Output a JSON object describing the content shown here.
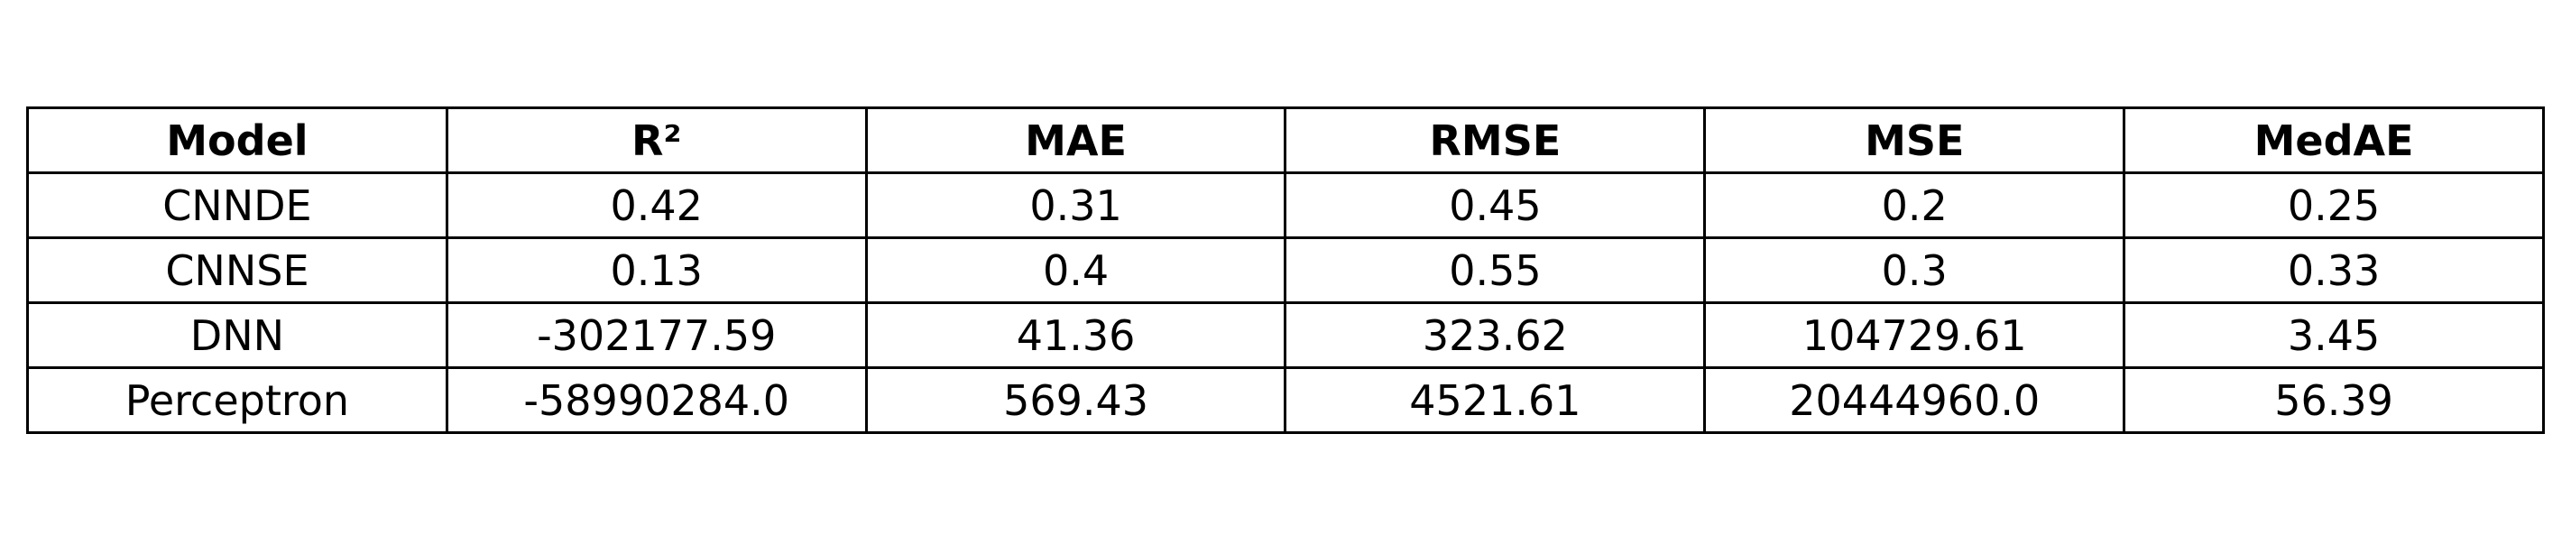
{
  "chart_data": {
    "type": "table",
    "columns": [
      "Model",
      "R²",
      "MAE",
      "RMSE",
      "MSE",
      "MedAE"
    ],
    "rows": [
      [
        "CNNDE",
        "0.42",
        "0.31",
        "0.45",
        "0.2",
        "0.25"
      ],
      [
        "CNNSE",
        "0.13",
        "0.4",
        "0.55",
        "0.3",
        "0.33"
      ],
      [
        "DNN",
        "-302177.59",
        "41.36",
        "323.62",
        "104729.61",
        "3.45"
      ],
      [
        "Perceptron",
        "-58990284.0",
        "569.43",
        "4521.61",
        "20444960.0",
        "56.39"
      ]
    ]
  }
}
